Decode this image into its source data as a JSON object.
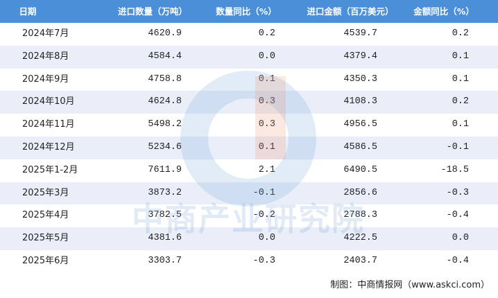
{
  "table": {
    "header": [
      "日期",
      "进口数量（万吨）",
      "数量同比（%）",
      "进口金额（百万美元）",
      "金额同比（%）"
    ],
    "rows": [
      [
        "2024年7月",
        "4620.9",
        "0.2",
        "4539.7",
        "0.2"
      ],
      [
        "2024年8月",
        "4584.4",
        "0.0",
        "4379.4",
        "0.1"
      ],
      [
        "2024年9月",
        "4758.8",
        "0.1",
        "4350.3",
        "0.1"
      ],
      [
        "2024年10月",
        "4624.8",
        "0.3",
        "4108.3",
        "0.2"
      ],
      [
        "2024年11月",
        "5498.2",
        "0.3",
        "4956.5",
        "0.1"
      ],
      [
        "2024年12月",
        "5234.6",
        "0.1",
        "4586.5",
        "-0.1"
      ],
      [
        "2025年1-2月",
        "7611.9",
        "2.1",
        "6490.5",
        "-18.5"
      ],
      [
        "2025年3月",
        "3873.2",
        "-0.1",
        "2856.6",
        "-0.3"
      ],
      [
        "2025年4月",
        "3782.5",
        "-0.2",
        "2788.3",
        "-0.4"
      ],
      [
        "2025年5月",
        "4381.6",
        "0.0",
        "4222.5",
        "0.0"
      ],
      [
        "2025年6月",
        "3303.7",
        "-0.3",
        "2403.7",
        "-0.4"
      ]
    ]
  },
  "watermark": "中商产业研究院",
  "footer": "制图：中商情报网（www.askci.com）"
}
